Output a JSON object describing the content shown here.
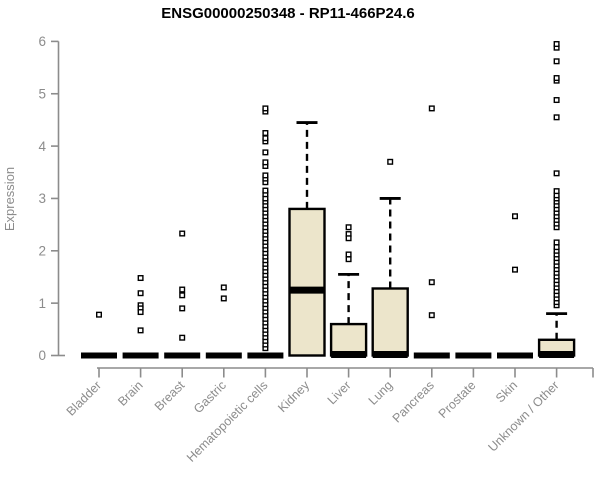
{
  "chart_data": {
    "type": "boxplot",
    "title": "ENSG00000250348 - RP11-466P24.6",
    "ylabel": "Expression",
    "ylim": [
      0,
      6
    ],
    "yticks": [
      0,
      1,
      2,
      3,
      4,
      5,
      6
    ],
    "legend": "none",
    "grid": false,
    "colors": {
      "box_fill": "#ece5cb",
      "box_line": "#000000",
      "axis": "#8c8c8c"
    },
    "series": [
      {
        "label": "Bladder",
        "q1": 0,
        "median": 0,
        "q3": 0,
        "whisker_low": 0,
        "whisker_high": 0,
        "outliers": [
          0.78
        ]
      },
      {
        "label": "Brain",
        "q1": 0,
        "median": 0,
        "q3": 0,
        "whisker_low": 0,
        "whisker_high": 0,
        "outliers": [
          1.48,
          1.19,
          0.96,
          0.9,
          0.83,
          0.48
        ]
      },
      {
        "label": "Breast",
        "q1": 0,
        "median": 0,
        "q3": 0,
        "whisker_low": 0,
        "whisker_high": 0,
        "outliers": [
          2.33,
          1.26,
          1.15,
          0.9,
          0.34
        ]
      },
      {
        "label": "Gastric",
        "q1": 0,
        "median": 0,
        "q3": 0,
        "whisker_low": 0,
        "whisker_high": 0,
        "outliers": [
          1.3,
          1.09
        ]
      },
      {
        "label": "Hematopoietic cells",
        "q1": 0,
        "median": 0,
        "q3": 0,
        "whisker_low": 0,
        "whisker_high": 0,
        "outliers": [
          0.14,
          0.21,
          0.28,
          0.35,
          0.42,
          0.49,
          0.56,
          0.63,
          0.7,
          0.77,
          0.84,
          0.91,
          0.98,
          1.05,
          1.12,
          1.19,
          1.26,
          1.33,
          1.4,
          1.47,
          1.54,
          1.61,
          1.68,
          1.75,
          1.82,
          1.89,
          1.96,
          2.03,
          2.1,
          2.17,
          2.24,
          2.31,
          2.38,
          2.45,
          2.52,
          2.59,
          2.66,
          2.73,
          2.8,
          2.87,
          2.94,
          3.0,
          3.08,
          3.15,
          3.31,
          3.38,
          3.44,
          3.62,
          3.69,
          3.88,
          4.09,
          4.15,
          4.25,
          4.66,
          4.72
        ]
      },
      {
        "label": "Kidney",
        "q1": 0,
        "median": 1.25,
        "q3": 2.8,
        "whisker_low": 0,
        "whisker_high": 4.45,
        "outliers": []
      },
      {
        "label": "Liver",
        "q1": 0,
        "median": 0.02,
        "q3": 0.6,
        "whisker_low": 0,
        "whisker_high": 1.55,
        "outliers": [
          2.45,
          2.32,
          2.24,
          1.93,
          1.84
        ]
      },
      {
        "label": "Lung",
        "q1": 0,
        "median": 0.02,
        "q3": 1.28,
        "whisker_low": 0,
        "whisker_high": 3.0,
        "outliers": [
          3.7
        ]
      },
      {
        "label": "Pancreas",
        "q1": 0,
        "median": 0,
        "q3": 0,
        "whisker_low": 0,
        "whisker_high": 0,
        "outliers": [
          4.72,
          1.4,
          0.77
        ]
      },
      {
        "label": "Prostate",
        "q1": 0,
        "median": 0,
        "q3": 0,
        "whisker_low": 0,
        "whisker_high": 0,
        "outliers": []
      },
      {
        "label": "Skin",
        "q1": 0,
        "median": 0,
        "q3": 0,
        "whisker_low": 0,
        "whisker_high": 0,
        "outliers": [
          2.66,
          1.64
        ]
      },
      {
        "label": "Unknown / Other",
        "q1": 0,
        "median": 0.02,
        "q3": 0.3,
        "whisker_low": 0,
        "whisker_high": 0.8,
        "outliers": [
          0.96,
          1.02,
          1.09,
          1.16,
          1.23,
          1.3,
          1.37,
          1.44,
          1.51,
          1.58,
          1.65,
          1.72,
          1.79,
          1.86,
          1.93,
          2.0,
          2.07,
          2.16,
          2.45,
          2.52,
          2.59,
          2.66,
          2.73,
          2.8,
          2.87,
          2.94,
          3.0,
          3.06,
          3.14,
          3.48,
          4.55,
          4.88,
          5.25,
          5.3,
          5.62,
          5.88,
          5.95
        ]
      }
    ]
  }
}
